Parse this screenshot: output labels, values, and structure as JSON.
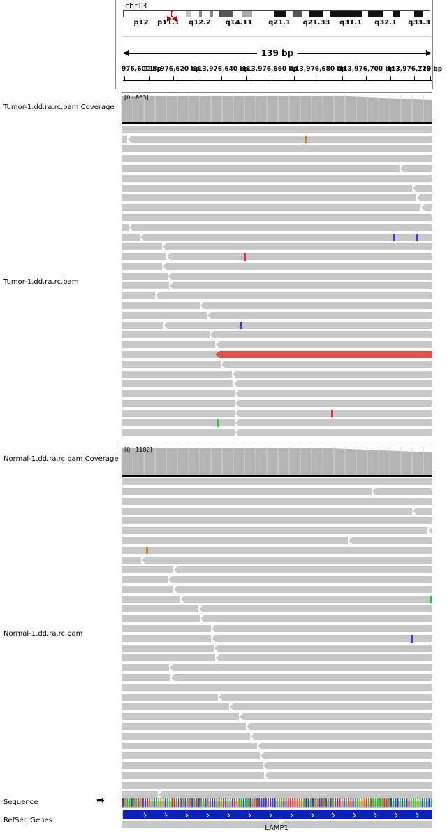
{
  "header": {
    "chromosome": "chr13",
    "cytobands": [
      "p12",
      "p11.1",
      "q12.2",
      "q14.11",
      "q21.1",
      "q21.33",
      "q31.1",
      "q32.1",
      "q33.3"
    ],
    "span_label": "139 bp",
    "ruler_ticks": [
      "976,600 bp",
      "113,976,620 bp",
      "113,976,640 bp",
      "113,976,660 bp",
      "113,976,680 bp",
      "113,976,700 bp",
      "113,976,720 bp",
      "113"
    ]
  },
  "tracks": {
    "tumor_coverage": {
      "label": "Tumor-1.dd.ra.rc.bam Coverage",
      "range": "[0 - 863]"
    },
    "tumor_reads": {
      "label": "Tumor-1.dd.ra.rc.bam"
    },
    "normal_coverage": {
      "label": "Normal-1.dd.ra.rc.bam Coverage",
      "range": "[0 - 1182]"
    },
    "normal_reads": {
      "label": "Normal-1.dd.ra.rc.bam"
    },
    "sequence": {
      "label": "Sequence",
      "arrow": "➡"
    },
    "refseq": {
      "label": "RefSeq Genes",
      "gene": "LAMP1"
    }
  },
  "colors": {
    "read": "#c8c8c8",
    "coverage": "#b4b4b4",
    "highlight_read": "#d9534f",
    "gene": "#0b22b9",
    "mismatch_A": "#22cc22",
    "mismatch_C": "#3a3ae0",
    "mismatch_G": "#d2822d",
    "mismatch_T": "#e03030"
  }
}
